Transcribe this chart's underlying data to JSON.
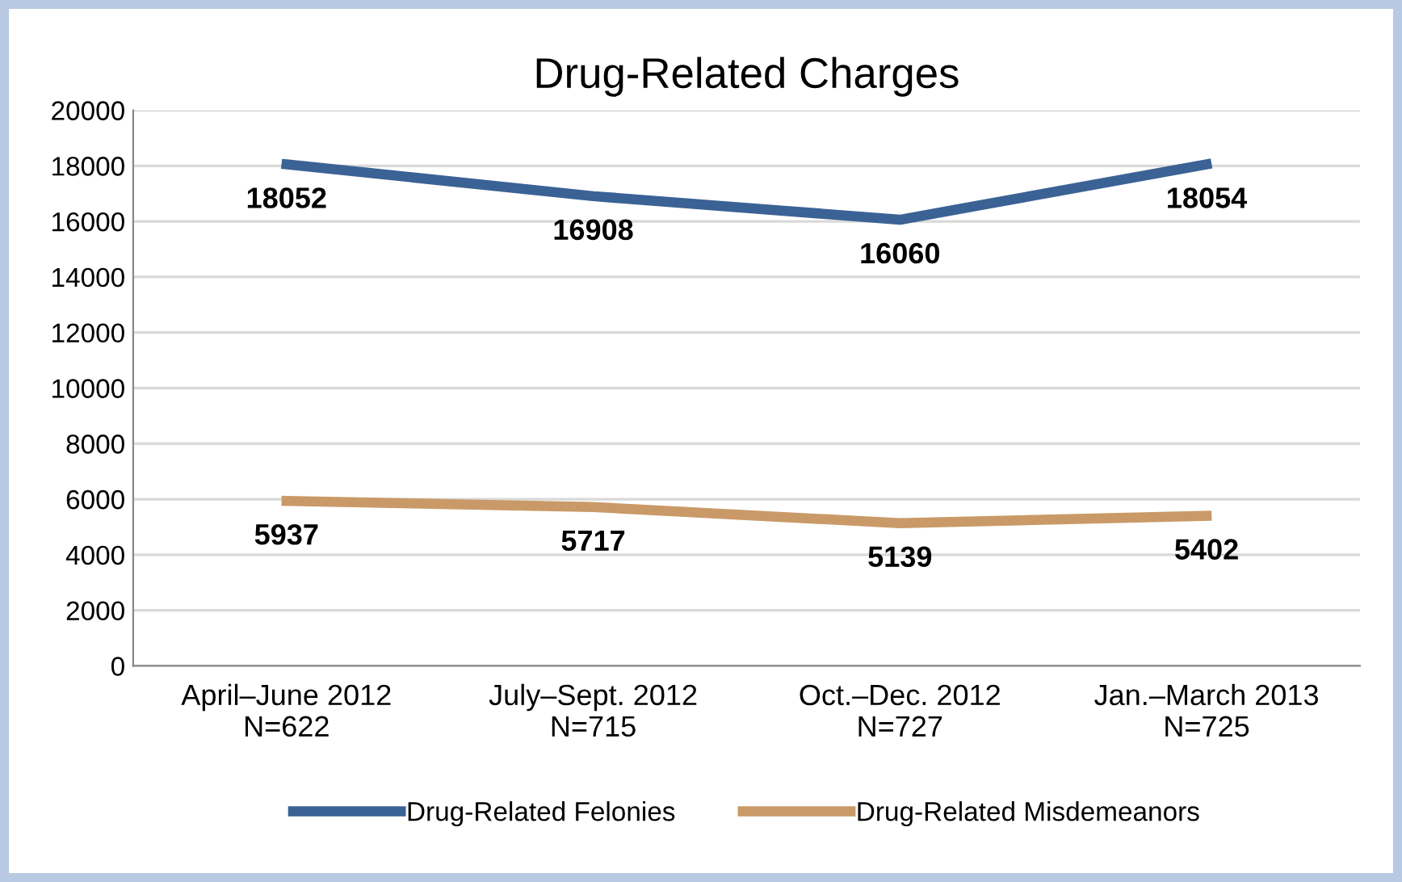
{
  "chart_data": {
    "type": "line",
    "title": "Drug-Related Charges",
    "categories": [
      "April–June 2012\nN=622",
      "July–Sept. 2012\nN=715",
      "Oct.–Dec. 2012\nN=727",
      "Jan.–March 2013\nN=725"
    ],
    "series": [
      {
        "name": "Drug-Related Felonies",
        "color": "#3b6295",
        "values": [
          18052,
          16908,
          16060,
          18054
        ]
      },
      {
        "name": "Drug-Related Misdemeanors",
        "color": "#c99a68",
        "values": [
          5937,
          5717,
          5139,
          5402
        ]
      }
    ],
    "ylim": [
      0,
      20000
    ],
    "yticks": [
      0,
      2000,
      4000,
      6000,
      8000,
      10000,
      12000,
      14000,
      16000,
      18000,
      20000
    ],
    "grid": "y",
    "legend": "bottom",
    "data_labels": true,
    "marker": "none",
    "line_style": "solid"
  }
}
